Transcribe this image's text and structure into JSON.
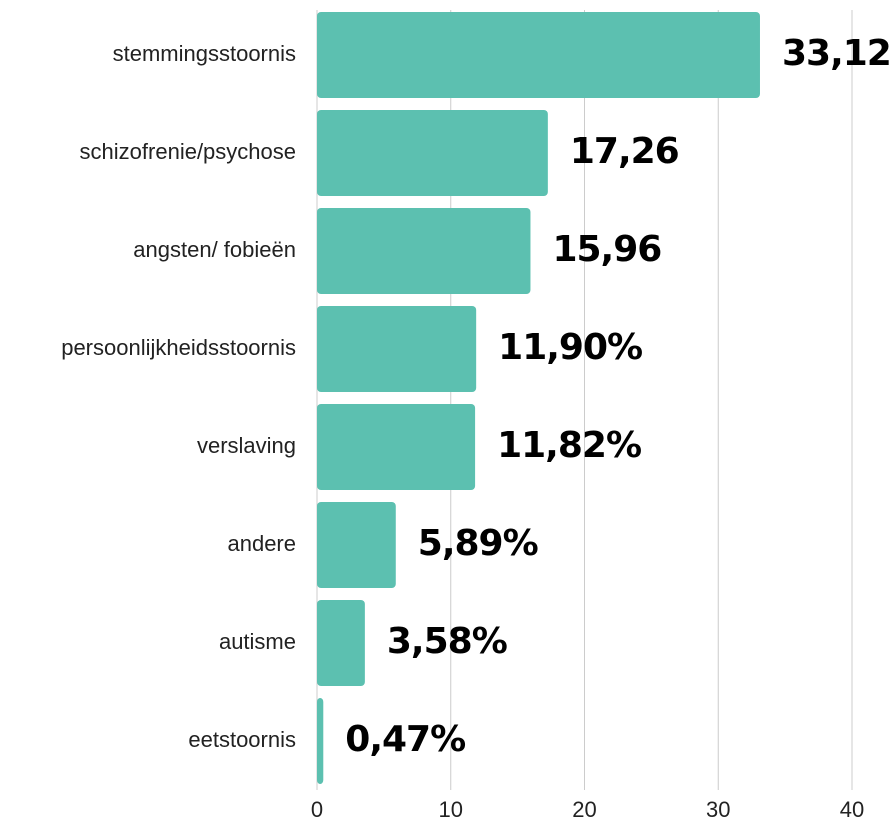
{
  "chart_data": {
    "type": "bar",
    "orientation": "horizontal",
    "categories": [
      "stemmingsstoornis",
      "schizofrenie/psychose",
      "angsten/ fobieën",
      "persoonlijkheidsstoornis",
      "verslaving",
      "andere",
      "autisme",
      "eetstoornis"
    ],
    "values": [
      33.12,
      17.26,
      15.96,
      11.9,
      11.82,
      5.89,
      3.58,
      0.47
    ],
    "value_labels": [
      "33,12",
      "17,26",
      "15,96",
      "11,90%",
      "11,82%",
      "5,89%",
      "3,58%",
      "0,47%"
    ],
    "color": "#5cc0b0",
    "xlim": [
      0,
      40
    ],
    "xticks": [
      0,
      10,
      20,
      30,
      40
    ],
    "grid": true
  }
}
